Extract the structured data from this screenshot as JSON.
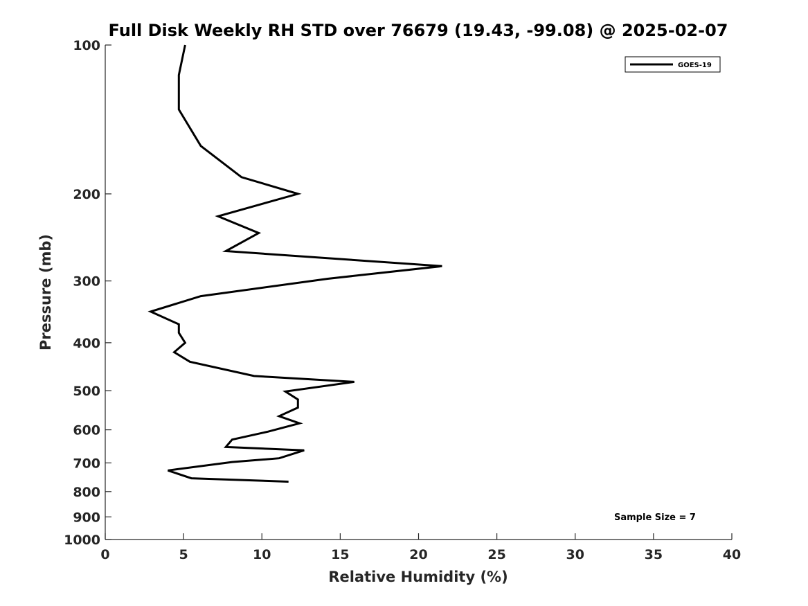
{
  "chart_data": {
    "type": "line",
    "title": "Full Disk Weekly RH STD over 76679 (19.43, -99.08) @ 2025-02-07",
    "xlabel": "Relative Humidity (%)",
    "ylabel": "Pressure (mb)",
    "xlim": [
      0,
      40
    ],
    "ylim": [
      1000,
      100
    ],
    "y_scale": "log",
    "y_reversed": true,
    "grid": false,
    "x_ticks": [
      "0",
      "5",
      "10",
      "15",
      "20",
      "25",
      "30",
      "35",
      "40"
    ],
    "y_ticks": [
      "100",
      "200",
      "300",
      "400",
      "500",
      "600",
      "700",
      "800",
      "900",
      "1000"
    ],
    "legend": {
      "position": "top-right",
      "entries": [
        "GOES-19"
      ]
    },
    "annotation": "Sample Size = 7",
    "series": [
      {
        "name": "GOES-19",
        "color": "#000000",
        "points": [
          [
            5.1,
            100
          ],
          [
            4.7,
            115
          ],
          [
            4.7,
            135
          ],
          [
            6.1,
            160
          ],
          [
            8.7,
            185
          ],
          [
            12.3,
            200
          ],
          [
            7.2,
            222
          ],
          [
            9.8,
            240
          ],
          [
            7.7,
            261
          ],
          [
            21.5,
            280
          ],
          [
            14.2,
            297
          ],
          [
            6.1,
            322
          ],
          [
            2.9,
            346
          ],
          [
            4.7,
            367
          ],
          [
            4.7,
            382
          ],
          [
            5.1,
            400
          ],
          [
            4.4,
            418
          ],
          [
            5.4,
            437
          ],
          [
            9.5,
            467
          ],
          [
            15.9,
            480
          ],
          [
            11.5,
            502
          ],
          [
            12.3,
            521
          ],
          [
            12.3,
            541
          ],
          [
            11.1,
            563
          ],
          [
            12.4,
            582
          ],
          [
            10.4,
            605
          ],
          [
            8.1,
            628
          ],
          [
            7.7,
            650
          ],
          [
            12.7,
            660
          ],
          [
            11.1,
            685
          ],
          [
            8.1,
            697
          ],
          [
            4.0,
            725
          ],
          [
            5.5,
            752
          ],
          [
            11.7,
            764
          ]
        ]
      }
    ]
  }
}
